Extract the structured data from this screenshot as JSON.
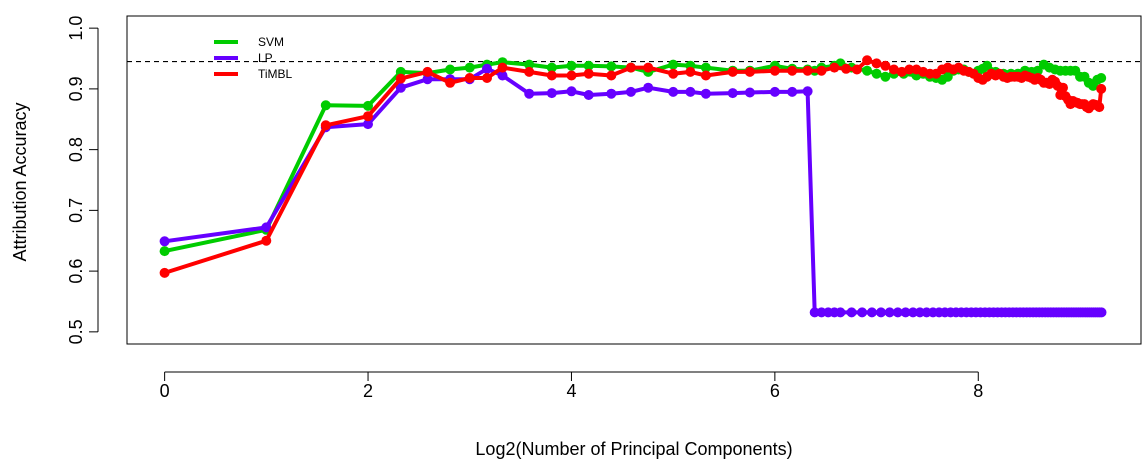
{
  "chart_data": {
    "type": "line",
    "title": "",
    "xlabel": "Log2(Number of Principal Components)",
    "ylabel": "Attribution Accuracy",
    "xlim": [
      -0.37,
      9.6
    ],
    "ylim": [
      0.48,
      1.02
    ],
    "xticks": [
      0,
      2,
      4,
      6,
      8
    ],
    "yticks": [
      0.5,
      0.6,
      0.7,
      0.8,
      0.9,
      1.0
    ],
    "xtick_labels": [
      "0",
      "2",
      "4",
      "6",
      "8"
    ],
    "ytick_labels": [
      "0.5",
      "0.6",
      "0.7",
      "0.8",
      "0.9",
      "1.0"
    ],
    "reference_line": {
      "y": 0.945,
      "style": "dashed",
      "color": "#000000"
    },
    "legend_position": "top-left",
    "grid": false,
    "series": [
      {
        "name": "SVM",
        "color": "#00cc00",
        "x": [
          0,
          1,
          1.585,
          2,
          2.322,
          2.585,
          2.807,
          3,
          3.17,
          3.322,
          3.585,
          3.807,
          4,
          4.17,
          4.392,
          4.585,
          4.755,
          5,
          5.17,
          5.322,
          5.585,
          5.755,
          6,
          6.17,
          6.322,
          6.392,
          6.459,
          6.585,
          6.644,
          6.755,
          6.907,
          7,
          7.087,
          7.17,
          7.267,
          7.392,
          7.459,
          7.524,
          7.585,
          7.644,
          7.7,
          7.755,
          7.807,
          7.858,
          7.907,
          8,
          8.044,
          8.087,
          8.17,
          8.248,
          8.322,
          8.392,
          8.459,
          8.524,
          8.585,
          8.644,
          8.7,
          8.755,
          8.807,
          8.858,
          8.907,
          8.954,
          9,
          9.044,
          9.087,
          9.129,
          9.17,
          9.209
        ],
        "values": [
          0.633,
          0.668,
          0.873,
          0.872,
          0.928,
          0.926,
          0.932,
          0.935,
          0.94,
          0.944,
          0.94,
          0.935,
          0.938,
          0.938,
          0.937,
          0.935,
          0.928,
          0.94,
          0.938,
          0.935,
          0.93,
          0.93,
          0.938,
          0.933,
          0.932,
          0.93,
          0.935,
          0.938,
          0.942,
          0.935,
          0.93,
          0.925,
          0.92,
          0.925,
          0.925,
          0.922,
          0.925,
          0.92,
          0.918,
          0.915,
          0.92,
          0.93,
          0.932,
          0.932,
          0.928,
          0.93,
          0.933,
          0.938,
          0.928,
          0.925,
          0.925,
          0.925,
          0.93,
          0.928,
          0.93,
          0.94,
          0.935,
          0.932,
          0.93,
          0.93,
          0.93,
          0.93,
          0.92,
          0.92,
          0.91,
          0.905,
          0.915,
          0.918
        ]
      },
      {
        "name": "LP",
        "color": "#6600ff",
        "x": [
          0,
          1,
          1.585,
          2,
          2.322,
          2.585,
          2.807,
          3,
          3.17,
          3.322,
          3.585,
          3.807,
          4,
          4.17,
          4.392,
          4.585,
          4.755,
          5,
          5.17,
          5.322,
          5.585,
          5.755,
          6,
          6.17,
          6.322,
          6.392,
          6.459,
          6.524,
          6.585,
          6.644,
          6.755,
          6.858,
          6.954,
          7.044,
          7.129,
          7.209,
          7.285,
          7.358,
          7.426,
          7.492,
          7.555,
          7.615,
          7.672,
          7.728,
          7.781,
          7.833,
          7.883,
          7.931,
          7.977,
          8.022,
          8.066,
          8.109,
          8.15,
          8.19,
          8.229,
          8.267,
          8.304,
          8.34,
          8.375,
          8.41,
          8.443,
          8.476,
          8.508,
          8.539,
          8.57,
          8.6,
          8.629,
          8.658,
          8.686,
          8.713,
          8.74,
          8.767,
          8.793,
          8.818,
          8.843,
          8.868,
          8.892,
          8.916,
          8.939,
          8.962,
          8.985,
          9.007,
          9.029,
          9.051,
          9.072,
          9.093,
          9.113,
          9.134,
          9.154,
          9.174,
          9.193,
          9.212
        ],
        "values": [
          0.649,
          0.672,
          0.837,
          0.842,
          0.902,
          0.916,
          0.916,
          0.916,
          0.933,
          0.922,
          0.892,
          0.893,
          0.896,
          0.89,
          0.892,
          0.895,
          0.902,
          0.895,
          0.895,
          0.892,
          0.893,
          0.894,
          0.895,
          0.895,
          0.896,
          0.532,
          0.532,
          0.532,
          0.532,
          0.532,
          0.532,
          0.532,
          0.532,
          0.532,
          0.532,
          0.532,
          0.532,
          0.532,
          0.532,
          0.532,
          0.532,
          0.532,
          0.532,
          0.532,
          0.532,
          0.532,
          0.532,
          0.532,
          0.532,
          0.532,
          0.532,
          0.532,
          0.532,
          0.532,
          0.532,
          0.532,
          0.532,
          0.532,
          0.532,
          0.532,
          0.532,
          0.532,
          0.532,
          0.532,
          0.532,
          0.532,
          0.532,
          0.532,
          0.532,
          0.532,
          0.532,
          0.532,
          0.532,
          0.532,
          0.532,
          0.532,
          0.532,
          0.532,
          0.532,
          0.532,
          0.532,
          0.532,
          0.532,
          0.532,
          0.532,
          0.532,
          0.532,
          0.532,
          0.532,
          0.532,
          0.532,
          0.532
        ]
      },
      {
        "name": "TiMBL",
        "color": "#ff0000",
        "x": [
          0,
          1,
          1.585,
          2,
          2.322,
          2.585,
          2.807,
          3,
          3.17,
          3.322,
          3.585,
          3.807,
          4,
          4.17,
          4.392,
          4.585,
          4.755,
          5,
          5.17,
          5.322,
          5.585,
          5.755,
          6,
          6.17,
          6.322,
          6.459,
          6.585,
          6.7,
          6.807,
          6.907,
          7,
          7.087,
          7.17,
          7.248,
          7.322,
          7.392,
          7.459,
          7.524,
          7.585,
          7.644,
          7.7,
          7.755,
          7.807,
          7.858,
          7.907,
          7.954,
          8,
          8.044,
          8.087,
          8.129,
          8.17,
          8.209,
          8.248,
          8.285,
          8.322,
          8.358,
          8.392,
          8.426,
          8.459,
          8.492,
          8.524,
          8.555,
          8.585,
          8.615,
          8.644,
          8.672,
          8.7,
          8.728,
          8.755,
          8.781,
          8.807,
          8.833,
          8.858,
          8.883,
          8.907,
          8.931,
          8.954,
          8.977,
          9,
          9.022,
          9.044,
          9.066,
          9.087,
          9.108,
          9.129,
          9.149,
          9.17,
          9.19,
          9.209
        ],
        "values": [
          0.597,
          0.65,
          0.84,
          0.855,
          0.917,
          0.928,
          0.91,
          0.918,
          0.918,
          0.935,
          0.928,
          0.922,
          0.922,
          0.925,
          0.922,
          0.935,
          0.935,
          0.925,
          0.928,
          0.922,
          0.928,
          0.928,
          0.93,
          0.93,
          0.93,
          0.93,
          0.935,
          0.933,
          0.932,
          0.947,
          0.942,
          0.938,
          0.932,
          0.928,
          0.932,
          0.932,
          0.928,
          0.925,
          0.925,
          0.932,
          0.935,
          0.932,
          0.935,
          0.93,
          0.928,
          0.925,
          0.918,
          0.915,
          0.92,
          0.925,
          0.922,
          0.925,
          0.92,
          0.918,
          0.92,
          0.92,
          0.92,
          0.918,
          0.922,
          0.92,
          0.918,
          0.915,
          0.918,
          0.915,
          0.91,
          0.91,
          0.908,
          0.915,
          0.912,
          0.905,
          0.89,
          0.902,
          0.888,
          0.882,
          0.875,
          0.88,
          0.878,
          0.877,
          0.875,
          0.875,
          0.875,
          0.87,
          0.868,
          0.872,
          0.875,
          0.874,
          0.873,
          0.87,
          0.9
        ]
      }
    ]
  }
}
